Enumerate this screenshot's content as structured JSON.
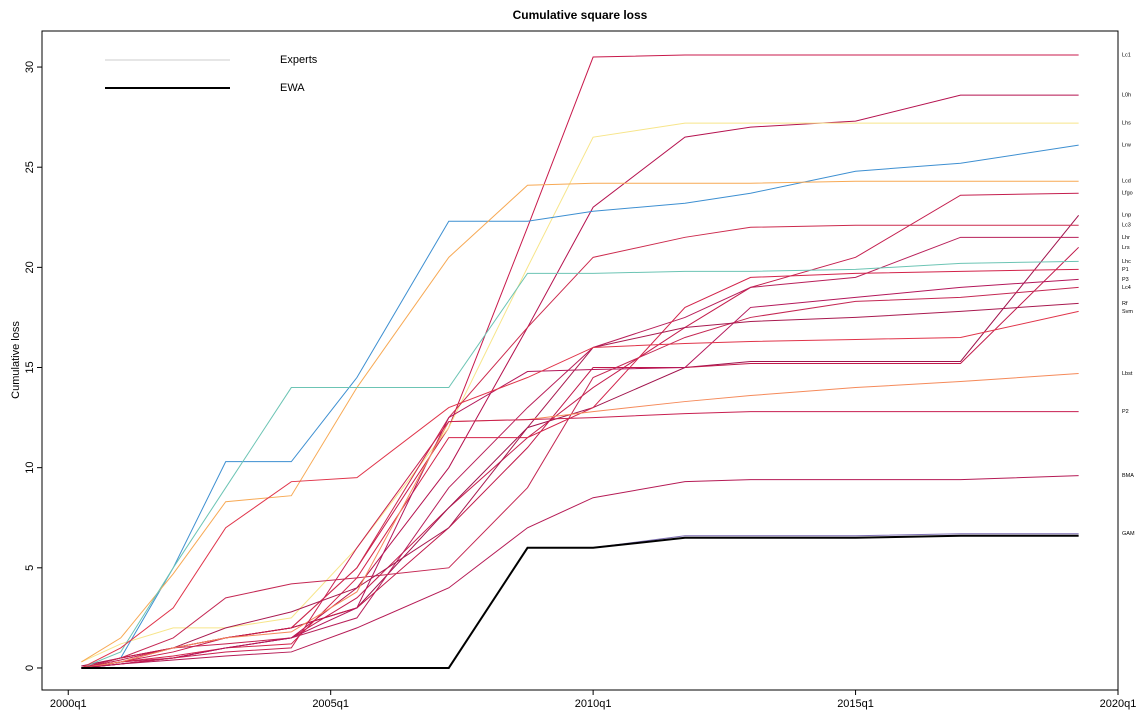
{
  "chart_data": {
    "type": "line",
    "title": "Cumulative square loss",
    "y_label": "Cumulative loss",
    "xlim": [
      1999.5,
      2020
    ],
    "ylim": [
      -1.1,
      31.8
    ],
    "xticks": [
      {
        "value": 2000,
        "label": "2000q1"
      },
      {
        "value": 2005,
        "label": "2005q1"
      },
      {
        "value": 2010,
        "label": "2010q1"
      },
      {
        "value": 2015,
        "label": "2015q1"
      },
      {
        "value": 2020,
        "label": "2020q1"
      }
    ],
    "yticks": [
      0,
      5,
      10,
      15,
      20,
      25,
      30
    ],
    "legend": [
      {
        "name": "Experts",
        "color": "#cccccc"
      },
      {
        "name": "EWA",
        "color": "#000000"
      }
    ],
    "legend_position": "top-left",
    "x": [
      2000.25,
      2001,
      2002,
      2003,
      2004.25,
      2005.5,
      2007.25,
      2008.75,
      2010,
      2011.75,
      2013,
      2015,
      2017,
      2019.25
    ],
    "series": [
      {
        "name": "Lc1",
        "color": "#c8194b",
        "values": [
          0,
          0.3,
          0.8,
          1.5,
          2,
          5,
          12,
          22,
          30.5,
          30.6,
          30.6,
          30.6,
          30.6,
          30.6
        ]
      },
      {
        "name": "L0h",
        "color": "#b5124f",
        "values": [
          0,
          0.2,
          0.5,
          1,
          1.5,
          4,
          10,
          17,
          23,
          26.5,
          27,
          27.3,
          28.6,
          28.6
        ]
      },
      {
        "name": "Lhs",
        "color": "#f7e58a",
        "values": [
          0.3,
          1.2,
          2,
          2,
          2.5,
          6,
          12,
          20,
          26.5,
          27.2,
          27.2,
          27.2,
          27.2,
          27.2
        ]
      },
      {
        "name": "Lrw",
        "color": "#3d8fd1",
        "values": [
          0,
          0.5,
          5,
          10.3,
          10.3,
          14.5,
          22.3,
          22.3,
          22.8,
          23.2,
          23.7,
          24.8,
          25.2,
          26.1
        ]
      },
      {
        "name": "Lcd",
        "color": "#f7a954",
        "values": [
          0.3,
          1.5,
          4.7,
          8.3,
          8.6,
          14,
          20.5,
          24.1,
          24.2,
          24.2,
          24.2,
          24.3,
          24.3,
          24.3
        ]
      },
      {
        "name": "Lfgo",
        "color": "#c41e4e",
        "values": [
          0,
          0.4,
          1,
          1.2,
          1.5,
          3.5,
          8,
          11.5,
          14,
          17,
          19,
          20.5,
          23.6,
          23.7
        ]
      },
      {
        "name": "Lnp",
        "color": "#a0124c",
        "values": [
          0.1,
          0.5,
          1,
          1.5,
          2,
          3,
          8,
          12,
          13,
          15,
          15.3,
          15.3,
          15.3,
          22.6
        ]
      },
      {
        "name": "Lc3",
        "color": "#cc2a4d",
        "values": [
          0,
          0.5,
          1,
          1.5,
          2,
          5,
          12.5,
          17,
          20.5,
          21.5,
          22,
          22.1,
          22.1,
          22.1
        ]
      },
      {
        "name": "Lhr",
        "color": "#b8205a",
        "values": [
          0,
          0.3,
          0.5,
          1,
          1.5,
          2.5,
          9,
          13,
          16,
          17.5,
          19,
          19.5,
          21.5,
          21.5
        ]
      },
      {
        "name": "Lrs",
        "color": "#c0184a",
        "values": [
          0,
          0.5,
          1,
          1.5,
          2,
          3,
          7,
          11,
          15,
          15,
          15.2,
          15.2,
          15.2,
          21
        ]
      },
      {
        "name": "Lhc",
        "color": "#6cc4b4",
        "values": [
          0,
          0.8,
          5,
          9,
          14,
          14,
          14,
          19.7,
          19.7,
          19.8,
          19.8,
          19.9,
          20.2,
          20.3
        ]
      },
      {
        "name": "P1",
        "color": "#d2234a",
        "values": [
          0,
          0.3,
          0.6,
          1,
          1.2,
          4.5,
          11.5,
          11.5,
          13,
          18,
          19.5,
          19.7,
          19.8,
          19.9
        ]
      },
      {
        "name": "P3",
        "color": "#b3175a",
        "values": [
          0,
          0.2,
          0.5,
          1,
          1.5,
          3,
          12.5,
          14.8,
          14.9,
          15,
          18,
          18.5,
          19,
          19.4
        ]
      },
      {
        "name": "Lc4",
        "color": "#c42753",
        "values": [
          0,
          0.5,
          1.5,
          3.5,
          4.2,
          4.5,
          5,
          9,
          14.5,
          16.5,
          17.5,
          18.3,
          18.5,
          19
        ]
      },
      {
        "name": "Rf",
        "color": "#a8194f",
        "values": [
          0,
          0.3,
          1,
          2,
          2.8,
          4,
          7,
          12,
          16,
          17,
          17.3,
          17.5,
          17.8,
          18.2
        ]
      },
      {
        "name": "Svm",
        "color": "#e0344a",
        "values": [
          0,
          1,
          3,
          7,
          9.3,
          9.5,
          13,
          14.5,
          16,
          16.2,
          16.3,
          16.4,
          16.5,
          17.8
        ]
      },
      {
        "name": "Lbst",
        "color": "#f58a5a",
        "values": [
          0,
          0.3,
          1,
          1.5,
          1.8,
          3.8,
          12.3,
          12.4,
          12.8,
          13.3,
          13.6,
          14,
          14.3,
          14.7
        ]
      },
      {
        "name": "P2",
        "color": "#c81f50",
        "values": [
          0,
          0.2,
          0.5,
          0.8,
          1,
          6,
          12.3,
          12.4,
          12.5,
          12.7,
          12.8,
          12.8,
          12.8,
          12.8
        ]
      },
      {
        "name": "BMA",
        "color": "#b51a55",
        "values": [
          0,
          0.2,
          0.4,
          0.6,
          0.8,
          2,
          4,
          7,
          8.5,
          9.3,
          9.4,
          9.4,
          9.4,
          9.6
        ]
      },
      {
        "name": "GAM",
        "color": "#7d6fb3",
        "values": [
          0,
          0,
          0,
          0,
          0,
          0,
          0,
          6,
          6,
          6.6,
          6.6,
          6.6,
          6.7,
          6.7
        ]
      },
      {
        "name": "EWA",
        "color": "#000000",
        "width": 2,
        "values": [
          0,
          0,
          0,
          0,
          0,
          0,
          0,
          6,
          6,
          6.5,
          6.5,
          6.5,
          6.6,
          6.6
        ]
      }
    ]
  }
}
